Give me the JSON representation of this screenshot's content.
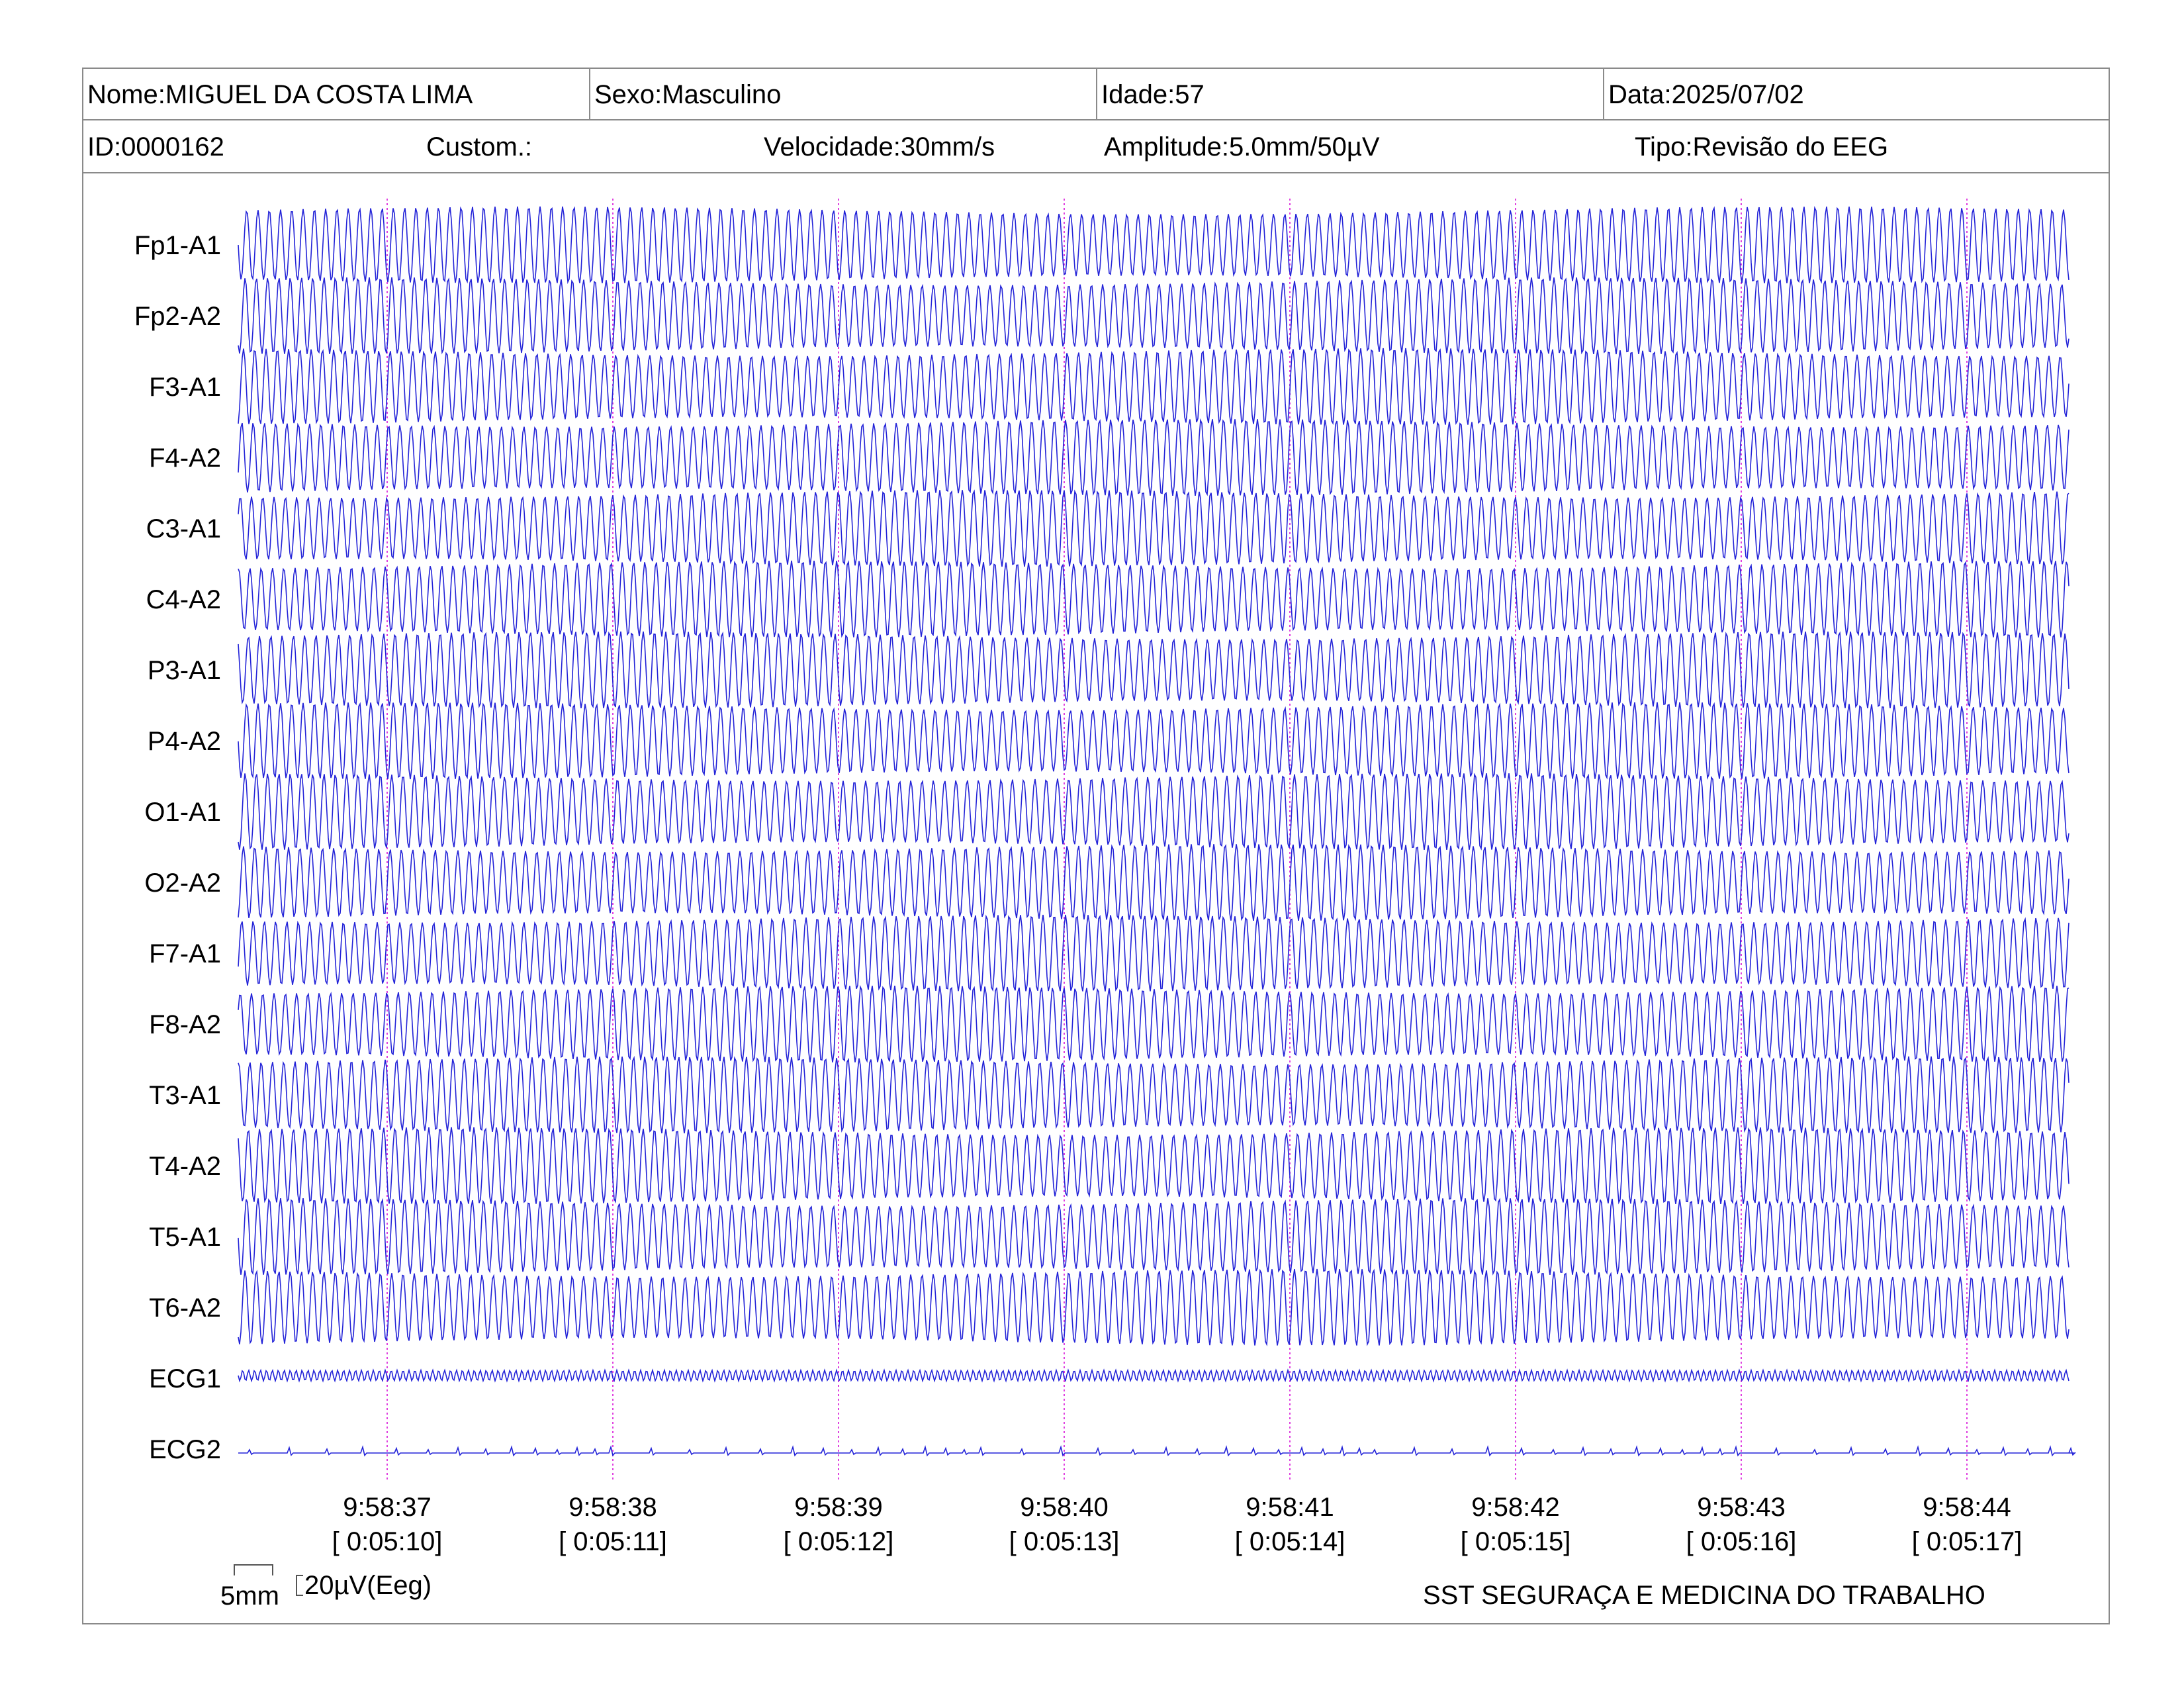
{
  "header": {
    "nome": "Nome:MIGUEL DA COSTA LIMA",
    "sexo": "Sexo:Masculino",
    "idade": "Idade:57",
    "data": "Data:2025/07/02",
    "id": "ID:0000162",
    "custom": "Custom.:",
    "velocidade": "Velocidade:30mm/s",
    "amplitude": "Amplitude:5.0mm/50µV",
    "tipo": "Tipo:Revisão do EEG"
  },
  "chart_data": {
    "type": "line",
    "channels": [
      "Fp1-A1",
      "Fp2-A2",
      "F3-A1",
      "F4-A2",
      "C3-A1",
      "C4-A2",
      "P3-A1",
      "P4-A2",
      "O1-A1",
      "O2-A2",
      "F7-A1",
      "F8-A2",
      "T3-A1",
      "T4-A2",
      "T5-A1",
      "T6-A2",
      "ECG1",
      "ECG2"
    ],
    "time_marks": [
      {
        "clock": "9:58:37",
        "elapsed": "[ 0:05:10]"
      },
      {
        "clock": "9:58:38",
        "elapsed": "[ 0:05:11]"
      },
      {
        "clock": "9:58:39",
        "elapsed": "[ 0:05:12]"
      },
      {
        "clock": "9:58:40",
        "elapsed": "[ 0:05:13]"
      },
      {
        "clock": "9:58:41",
        "elapsed": "[ 0:05:14]"
      },
      {
        "clock": "9:58:42",
        "elapsed": "[ 0:05:15]"
      },
      {
        "clock": "9:58:43",
        "elapsed": "[ 0:05:16]"
      },
      {
        "clock": "9:58:44",
        "elapsed": "[ 0:05:17]"
      }
    ],
    "eeg_cycles_per_second": 20,
    "ecg1_cycles_per_second": 38,
    "trace_color": "#2323d8",
    "marker_color": "#e040e0"
  },
  "scale": {
    "time_label": "5mm",
    "amplitude_label": "20µV(Eeg)"
  },
  "footer": {
    "organization": "SST SEGURAÇA E MEDICINA DO TRABALHO"
  }
}
